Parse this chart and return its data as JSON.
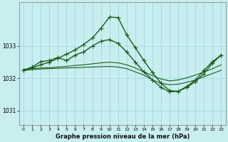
{
  "title": "Graphe pression niveau de la mer (hPa)",
  "bg_color": "#c8eef0",
  "grid_color": "#a0d8dc",
  "line_color": "#1a5c1a",
  "xlim": [
    -0.5,
    23.5
  ],
  "ylim": [
    1030.55,
    1034.35
  ],
  "yticks": [
    1031,
    1032,
    1033
  ],
  "xticks": [
    0,
    1,
    2,
    3,
    4,
    5,
    6,
    7,
    8,
    9,
    10,
    11,
    12,
    13,
    14,
    15,
    16,
    17,
    18,
    19,
    20,
    21,
    22,
    23
  ],
  "series": [
    {
      "x": [
        0,
        1,
        2,
        3,
        4,
        5,
        6,
        7,
        8,
        9,
        10,
        11,
        12,
        13,
        14,
        15,
        16,
        17,
        18,
        19,
        20,
        21,
        22,
        23
      ],
      "y": [
        1032.25,
        1032.27,
        1032.29,
        1032.3,
        1032.31,
        1032.32,
        1032.33,
        1032.34,
        1032.35,
        1032.36,
        1032.37,
        1032.35,
        1032.3,
        1032.2,
        1032.1,
        1031.95,
        1031.85,
        1031.8,
        1031.82,
        1031.88,
        1031.95,
        1032.05,
        1032.15,
        1032.25
      ],
      "marker": null,
      "linewidth": 0.8
    },
    {
      "x": [
        0,
        1,
        2,
        3,
        4,
        5,
        6,
        7,
        8,
        9,
        10,
        11,
        12,
        13,
        14,
        15,
        16,
        17,
        18,
        19,
        20,
        21,
        22,
        23
      ],
      "y": [
        1032.28,
        1032.3,
        1032.32,
        1032.33,
        1032.35,
        1032.37,
        1032.4,
        1032.42,
        1032.45,
        1032.48,
        1032.5,
        1032.48,
        1032.42,
        1032.32,
        1032.2,
        1032.08,
        1031.98,
        1031.92,
        1031.95,
        1032.02,
        1032.1,
        1032.2,
        1032.3,
        1032.42
      ],
      "marker": null,
      "linewidth": 0.8
    },
    {
      "x": [
        0,
        1,
        2,
        3,
        4,
        5,
        6,
        7,
        8,
        9,
        10,
        11,
        12,
        13,
        14,
        15,
        16,
        17,
        18,
        19,
        20,
        21,
        22,
        23
      ],
      "y": [
        1032.25,
        1032.32,
        1032.42,
        1032.5,
        1032.62,
        1032.75,
        1032.88,
        1033.05,
        1033.25,
        1033.55,
        1033.9,
        1033.88,
        1033.35,
        1032.95,
        1032.55,
        1032.18,
        1031.85,
        1031.62,
        1031.6,
        1031.72,
        1031.9,
        1032.15,
        1032.48,
        1032.72
      ],
      "marker": "+",
      "linewidth": 1.0,
      "markersize": 4
    },
    {
      "x": [
        0,
        1,
        2,
        3,
        4,
        5,
        6,
        7,
        8,
        9,
        10,
        11,
        12,
        13,
        14,
        15,
        16,
        17,
        18,
        19,
        20,
        21,
        22,
        23
      ],
      "y": [
        1032.25,
        1032.35,
        1032.52,
        1032.55,
        1032.65,
        1032.55,
        1032.72,
        1032.82,
        1033.0,
        1033.15,
        1033.2,
        1033.08,
        1032.82,
        1032.5,
        1032.2,
        1031.95,
        1031.72,
        1031.58,
        1031.6,
        1031.75,
        1031.95,
        1032.25,
        1032.52,
        1032.72
      ],
      "marker": "+",
      "linewidth": 1.0,
      "markersize": 4
    }
  ]
}
